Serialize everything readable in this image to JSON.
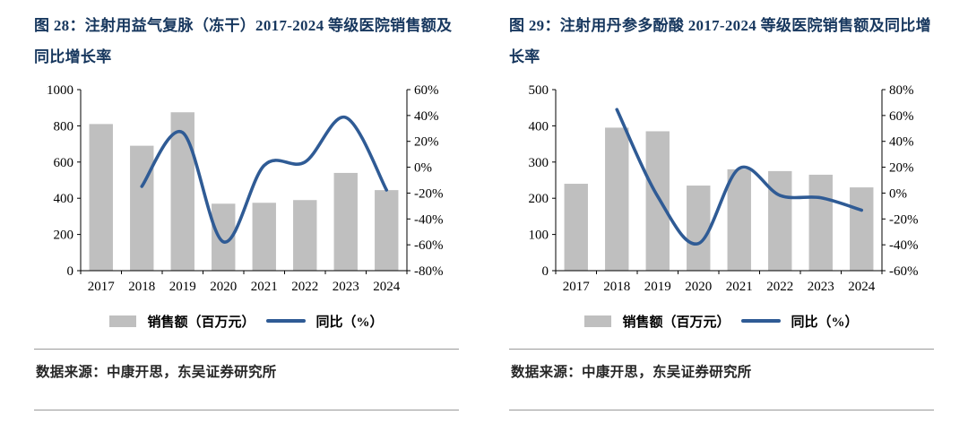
{
  "colors": {
    "bar": "#BFBFBF",
    "line": "#2F5B95",
    "title": "#17375E",
    "axis": "#000000"
  },
  "chart_data": [
    {
      "type": "combo_bar_line",
      "title": "图 28：注射用益气复脉（冻干）2017-2024 等级医院销售额及同比增长率",
      "categories": [
        "2017",
        "2018",
        "2019",
        "2020",
        "2021",
        "2022",
        "2023",
        "2024"
      ],
      "series": [
        {
          "name": "销售额（百万元）",
          "type": "bar",
          "axis": "left",
          "values": [
            810,
            690,
            875,
            370,
            375,
            390,
            540,
            445
          ]
        },
        {
          "name": "同比（%）",
          "type": "line",
          "axis": "right",
          "values": [
            null,
            -14.8,
            26.8,
            -57.7,
            1.4,
            4.0,
            38.5,
            -17.6
          ]
        }
      ],
      "left_axis": {
        "min": 0,
        "max": 1000,
        "ticks": [
          "0",
          "200",
          "400",
          "600",
          "800",
          "1000"
        ]
      },
      "right_axis": {
        "min": -80,
        "max": 60,
        "ticks": [
          "-80%",
          "-60%",
          "-40%",
          "-20%",
          "0%",
          "20%",
          "40%",
          "60%"
        ]
      },
      "grid": false,
      "legend_position": "bottom",
      "source": "数据来源：中康开思，东吴证券研究所"
    },
    {
      "type": "combo_bar_line",
      "title": "图 29：注射用丹参多酚酸 2017-2024 等级医院销售额及同比增长率",
      "categories": [
        "2017",
        "2018",
        "2019",
        "2020",
        "2021",
        "2022",
        "2023",
        "2024"
      ],
      "series": [
        {
          "name": "销售额（百万元）",
          "type": "bar",
          "axis": "left",
          "values": [
            240,
            395,
            385,
            235,
            280,
            275,
            265,
            230
          ]
        },
        {
          "name": "同比（%）",
          "type": "line",
          "axis": "right",
          "values": [
            null,
            64.6,
            -2.5,
            -39.0,
            19.1,
            -1.8,
            -3.6,
            -13.2
          ]
        }
      ],
      "left_axis": {
        "min": 0,
        "max": 500,
        "ticks": [
          "0",
          "100",
          "200",
          "300",
          "400",
          "500"
        ]
      },
      "right_axis": {
        "min": -60,
        "max": 80,
        "ticks": [
          "-60%",
          "-40%",
          "-20%",
          "0%",
          "20%",
          "40%",
          "60%",
          "80%"
        ]
      },
      "grid": false,
      "legend_position": "bottom",
      "source": "数据来源：中康开思，东吴证券研究所"
    }
  ]
}
